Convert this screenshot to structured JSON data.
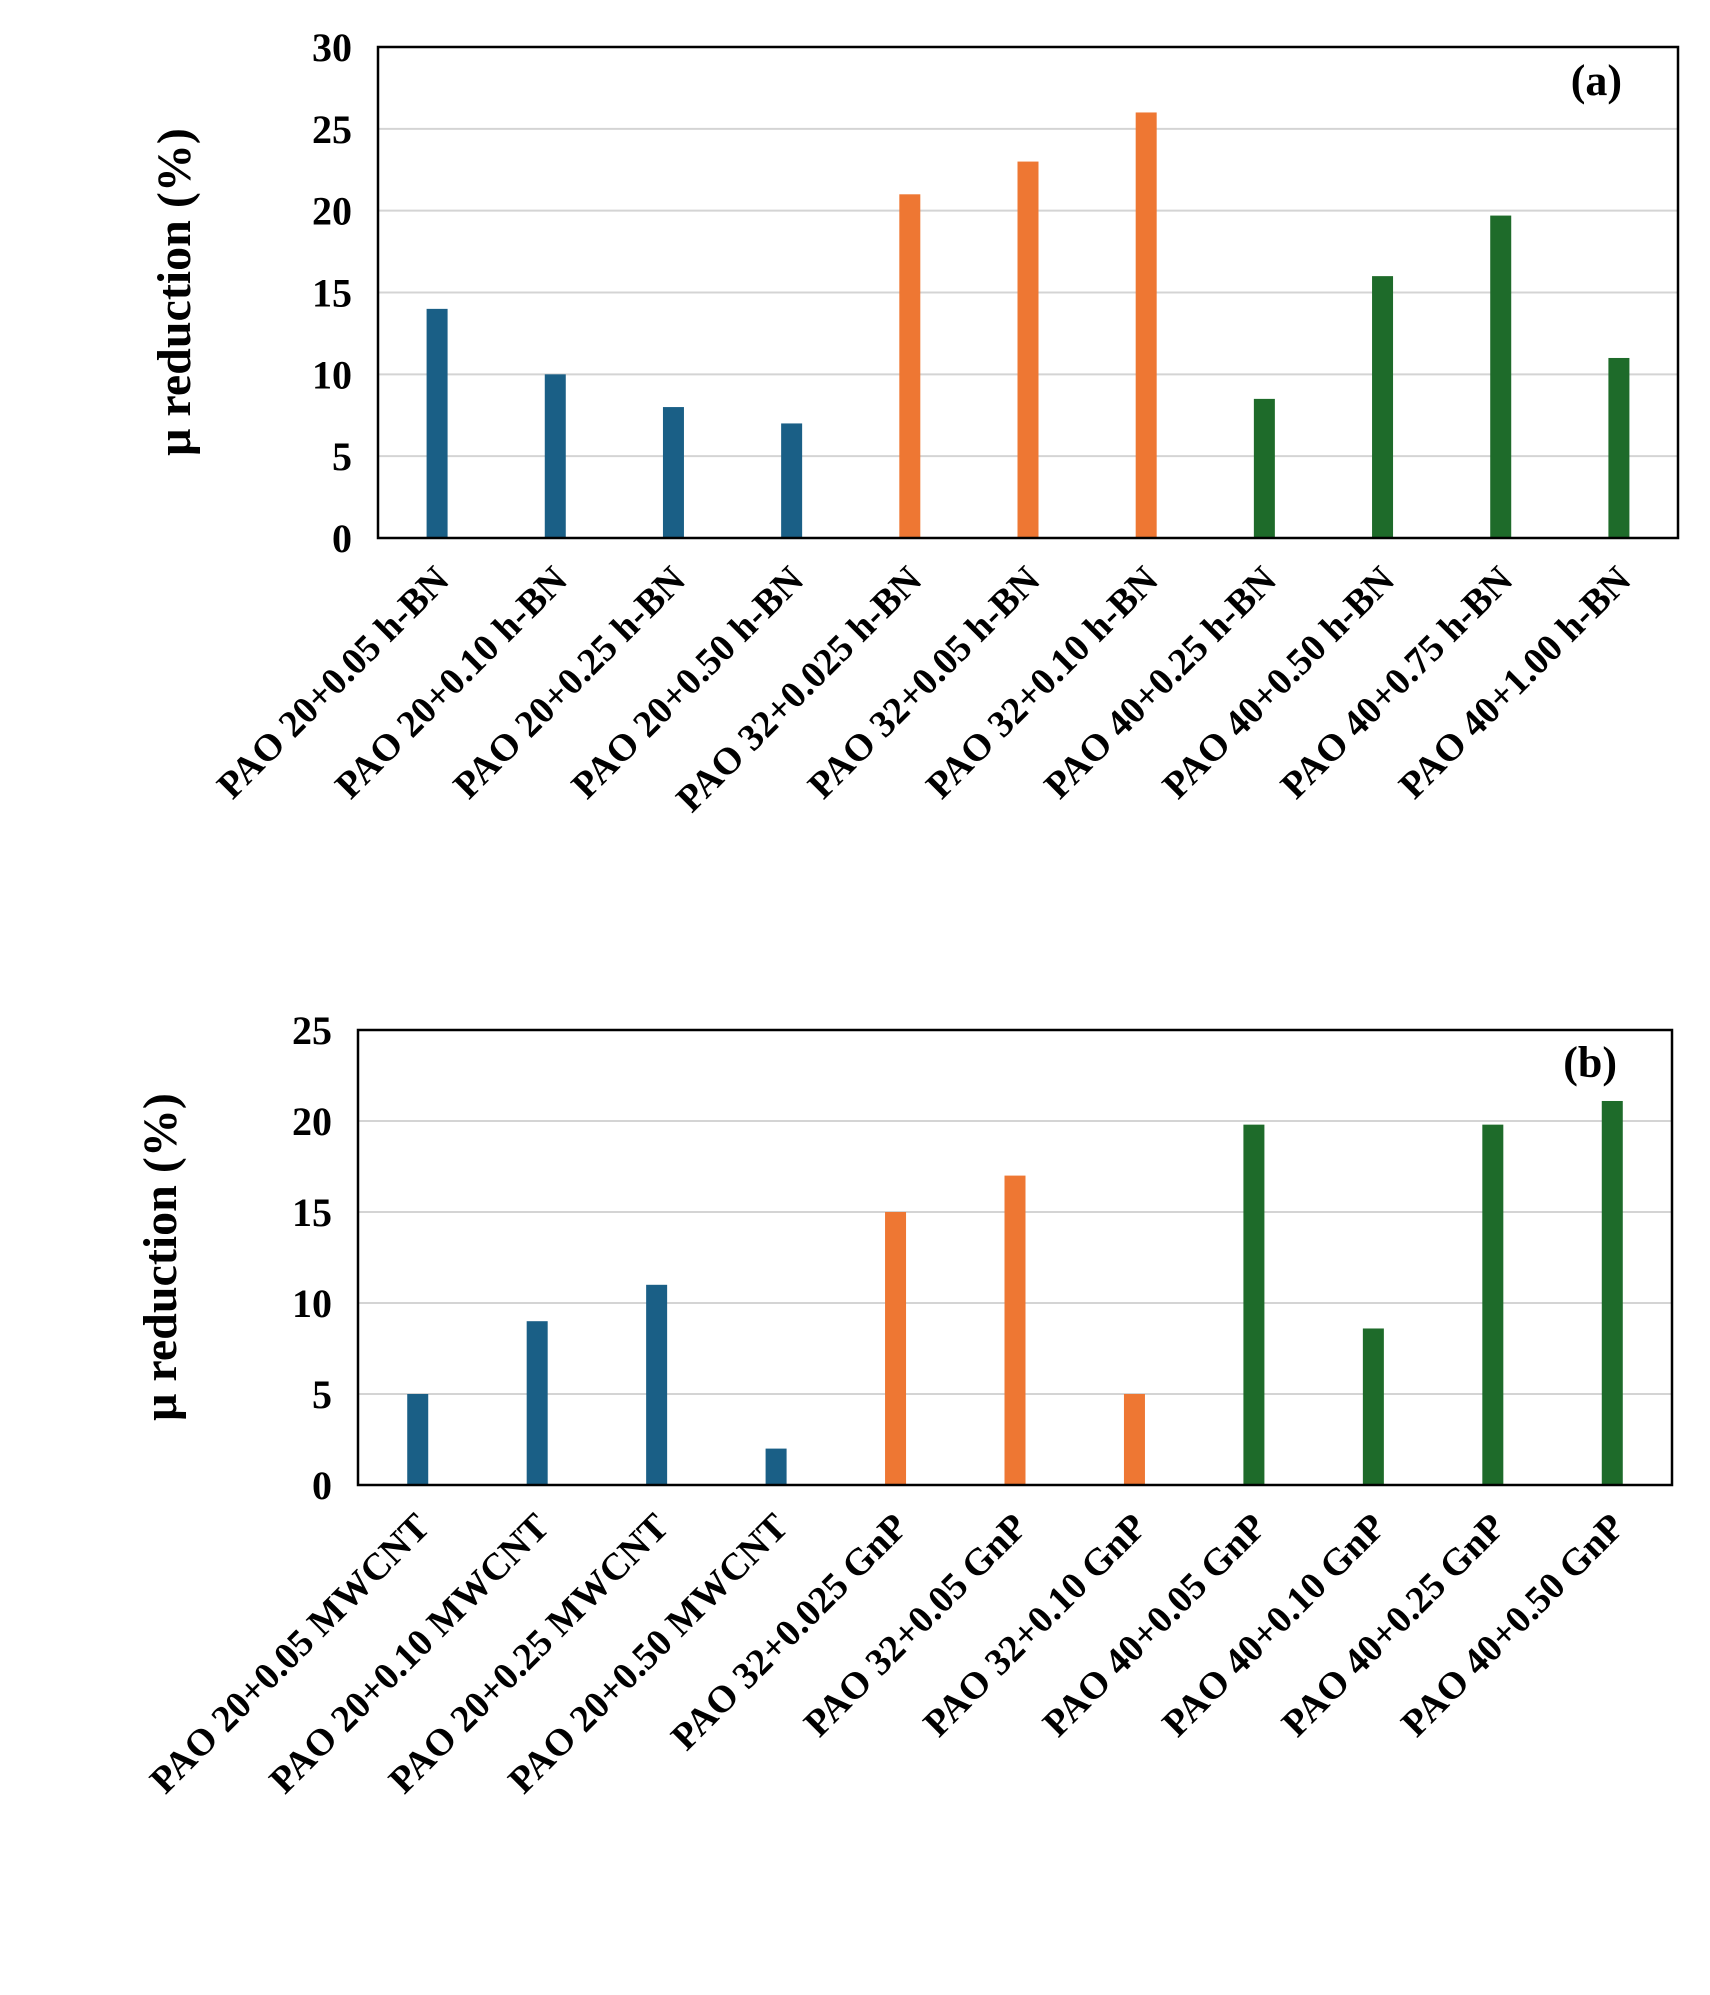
{
  "chart_data": [
    {
      "type": "bar",
      "panel_label": "(a)",
      "ylabel": "μ reduction (%)",
      "xlabel": "",
      "ylim": [
        0,
        30
      ],
      "yticks": [
        "0",
        "5",
        "10",
        "15",
        "20",
        "25",
        "30"
      ],
      "grid": true,
      "categories": [
        "PAO 20+0.05 h-BN",
        "PAO 20+0.10 h-BN",
        "PAO 20+0.25 h-BN",
        "PAO 20+0.50 h-BN",
        "PAO 32+0.025 h-BN",
        "PAO 32+0.05 h-BN",
        "PAO 32+0.10 h-BN",
        "PAO 40+0.25 h-BN",
        "PAO 40+0.50 h-BN",
        "PAO 40+0.75 h-BN",
        "PAO 40+1.00 h-BN"
      ],
      "values": [
        14,
        10,
        8,
        7,
        21,
        23,
        26,
        8.5,
        16,
        19.7,
        11
      ],
      "colors": [
        "#1a5f86",
        "#1a5f86",
        "#1a5f86",
        "#1a5f86",
        "#ee7733",
        "#ee7733",
        "#ee7733",
        "#1e6b2a",
        "#1e6b2a",
        "#1e6b2a",
        "#1e6b2a"
      ]
    },
    {
      "type": "bar",
      "panel_label": "(b)",
      "ylabel": "μ reduction (%)",
      "xlabel": "",
      "ylim": [
        0,
        25
      ],
      "yticks": [
        "0",
        "5",
        "10",
        "15",
        "20",
        "25"
      ],
      "grid": true,
      "categories": [
        "PAO 20+0.05 MWCNT",
        "PAO 20+0.10 MWCNT",
        "PAO 20+0.25 MWCNT",
        "PAO 20+0.50 MWCNT",
        "PAO 32+0.025 GnP",
        "PAO 32+0.05 GnP",
        "PAO 32+0.10 GnP",
        "PAO 40+0.05 GnP",
        "PAO 40+0.10 GnP",
        "PAO 40+0.25 GnP",
        "PAO 40+0.50 GnP"
      ],
      "values": [
        5,
        9,
        11,
        2,
        15,
        17,
        5,
        19.8,
        8.6,
        19.8,
        21.1
      ],
      "colors": [
        "#1a5f86",
        "#1a5f86",
        "#1a5f86",
        "#1a5f86",
        "#ee7733",
        "#ee7733",
        "#ee7733",
        "#1e6b2a",
        "#1e6b2a",
        "#1e6b2a",
        "#1e6b2a"
      ]
    }
  ]
}
